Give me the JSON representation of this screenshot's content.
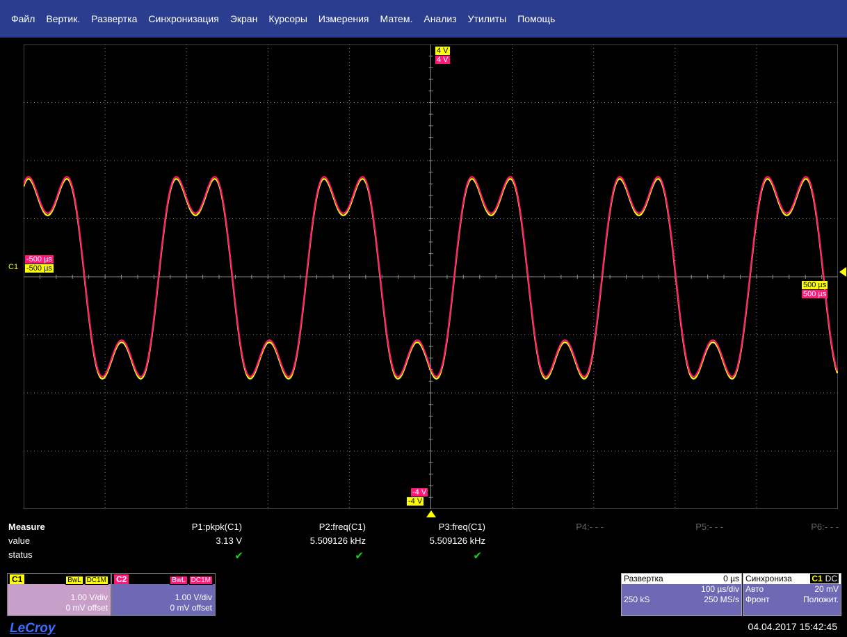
{
  "menu": {
    "items": [
      "Файл",
      "Вертик.",
      "Развертка",
      "Синхронизация",
      "Экран",
      "Курсоры",
      "Измерения",
      "Матем.",
      "Анализ",
      "Утилиты",
      "Помощь"
    ]
  },
  "markers": {
    "top_c1": "4 V",
    "top_c2": "4 V",
    "bottom_c2": "-4 V",
    "bottom_c1": "-4 V",
    "left_c2": "-500 µs",
    "left_c1": "-500 µs",
    "right_c1": "500 µs",
    "right_c2": "500 µs",
    "channel_label": "C1"
  },
  "waveform": {
    "fundamental_periods_on_screen": 5.509,
    "peak_divisions": 1.55
  },
  "measure": {
    "title": "Measure",
    "row_value": "value",
    "row_status": "status",
    "params": [
      {
        "name": "P1:pkpk(C1)",
        "value": "3.13 V",
        "status": "✔"
      },
      {
        "name": "P2:freq(C1)",
        "value": "5.509126 kHz",
        "status": "✔"
      },
      {
        "name": "P3:freq(C1)",
        "value": "5.509126 kHz",
        "status": "✔"
      },
      {
        "name": "P4:- - -",
        "value": "",
        "status": ""
      },
      {
        "name": "P5:- - -",
        "value": "",
        "status": ""
      },
      {
        "name": "P6:- - -",
        "value": "",
        "status": ""
      }
    ]
  },
  "channels": {
    "c1": {
      "name": "C1",
      "bwl": "BwL",
      "coupling": "DC1M",
      "scale": "1.00 V/div",
      "offset": "0 mV offset"
    },
    "c2": {
      "name": "C2",
      "bwl": "BwL",
      "coupling": "DC1M",
      "scale": "1.00 V/div",
      "offset": "0 mV offset"
    }
  },
  "timebase": {
    "title": "Развертка",
    "delay": "0 µs",
    "scale": "100 µs/div",
    "samples": "250 kS",
    "rate": "250 MS/s"
  },
  "trigger": {
    "title": "Синхрониза",
    "source": "C1",
    "coupling": "DC",
    "mode": "Авто",
    "level": "20 mV",
    "type": "Фронт",
    "slope": "Положит."
  },
  "footer": {
    "brand": "LeCroy",
    "datetime": "04.04.2017 15:42:45"
  },
  "colors": {
    "menubar": "#2a3d8f",
    "c1": "#ffff00",
    "c2": "#ff1a7a",
    "grid": "#8a8a8a",
    "timebase_panel": "#6e68b5",
    "c1_panel": "#c89fc8",
    "c2_panel": "#6e68b5"
  }
}
